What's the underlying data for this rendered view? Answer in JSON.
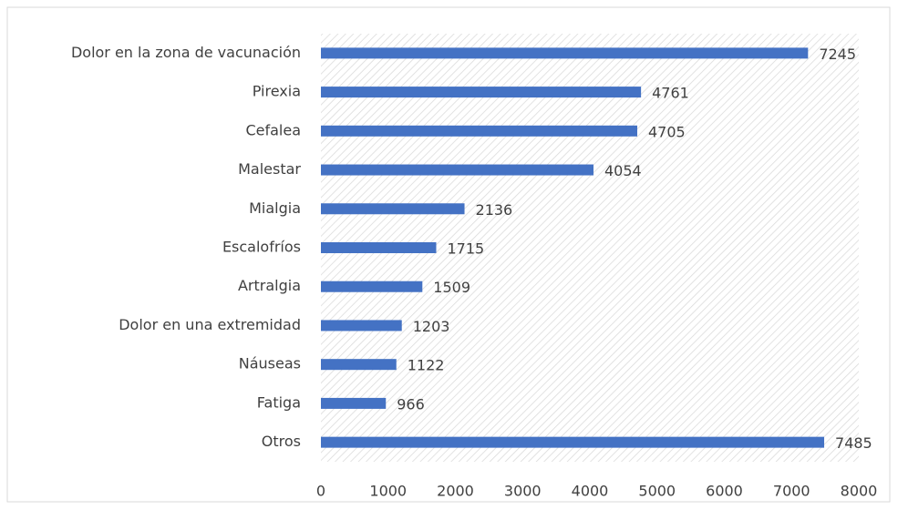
{
  "chart_data": {
    "type": "barh",
    "categories": [
      "Dolor en la zona de vacunación",
      "Pirexia",
      "Cefalea",
      "Malestar",
      "Mialgia",
      "Escalofríos",
      "Artralgia",
      "Dolor en una extremidad",
      "Náuseas",
      "Fatiga",
      "Otros"
    ],
    "values": [
      7245,
      4761,
      4705,
      4054,
      2136,
      1715,
      1509,
      1203,
      1122,
      966,
      7485
    ],
    "color": "#4472c4",
    "xlim": [
      0,
      8000
    ],
    "xticks": [
      0,
      1000,
      2000,
      3000,
      4000,
      5000,
      6000,
      7000,
      8000
    ]
  }
}
